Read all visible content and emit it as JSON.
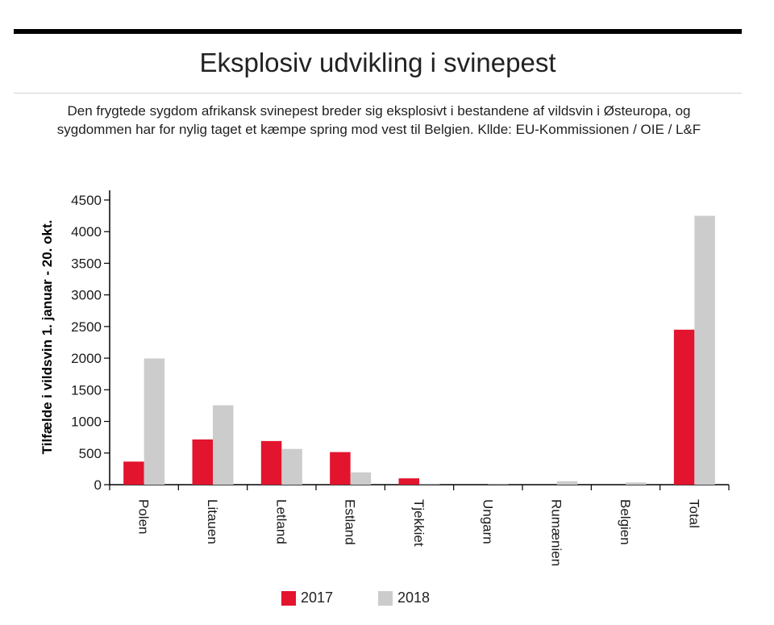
{
  "title": "Eksplosiv udvikling i svinepest",
  "subtitle": "Den frygtede sygdom afrikansk svinepest breder sig eksplosivt i bestandene af vildsvin i Østeuropa, og sygdommen har for nylig taget et kæmpe spring mod vest til Belgien. Kllde: EU-Kommissionen / OIE / L&F",
  "chart_data": {
    "type": "bar",
    "title": "Eksplosiv udvikling i svinepest",
    "xlabel": "",
    "ylabel": "Tilfælde i vildsvin 1. januar - 20. okt.",
    "ylim": [
      0,
      4500
    ],
    "yticks": [
      0,
      500,
      1000,
      1500,
      2000,
      2500,
      3000,
      3500,
      4000,
      4500
    ],
    "categories": [
      "Polen",
      "Litauen",
      "Letland",
      "Estland",
      "Tjekkiet",
      "Ungarn",
      "Rumænien",
      "Belgien",
      "Total"
    ],
    "series": [
      {
        "name": "2017",
        "color": "#e3142d",
        "values": [
          365,
          715,
          690,
          515,
          100,
          0,
          0,
          0,
          2450
        ]
      },
      {
        "name": "2018",
        "color": "#cccccc",
        "values": [
          1995,
          1255,
          565,
          195,
          5,
          5,
          55,
          35,
          4250
        ]
      }
    ],
    "grid": false,
    "legend": "bottom-center"
  },
  "legend": [
    {
      "label": "2017",
      "color": "#e3142d"
    },
    {
      "label": "2018",
      "color": "#cccccc"
    }
  ]
}
